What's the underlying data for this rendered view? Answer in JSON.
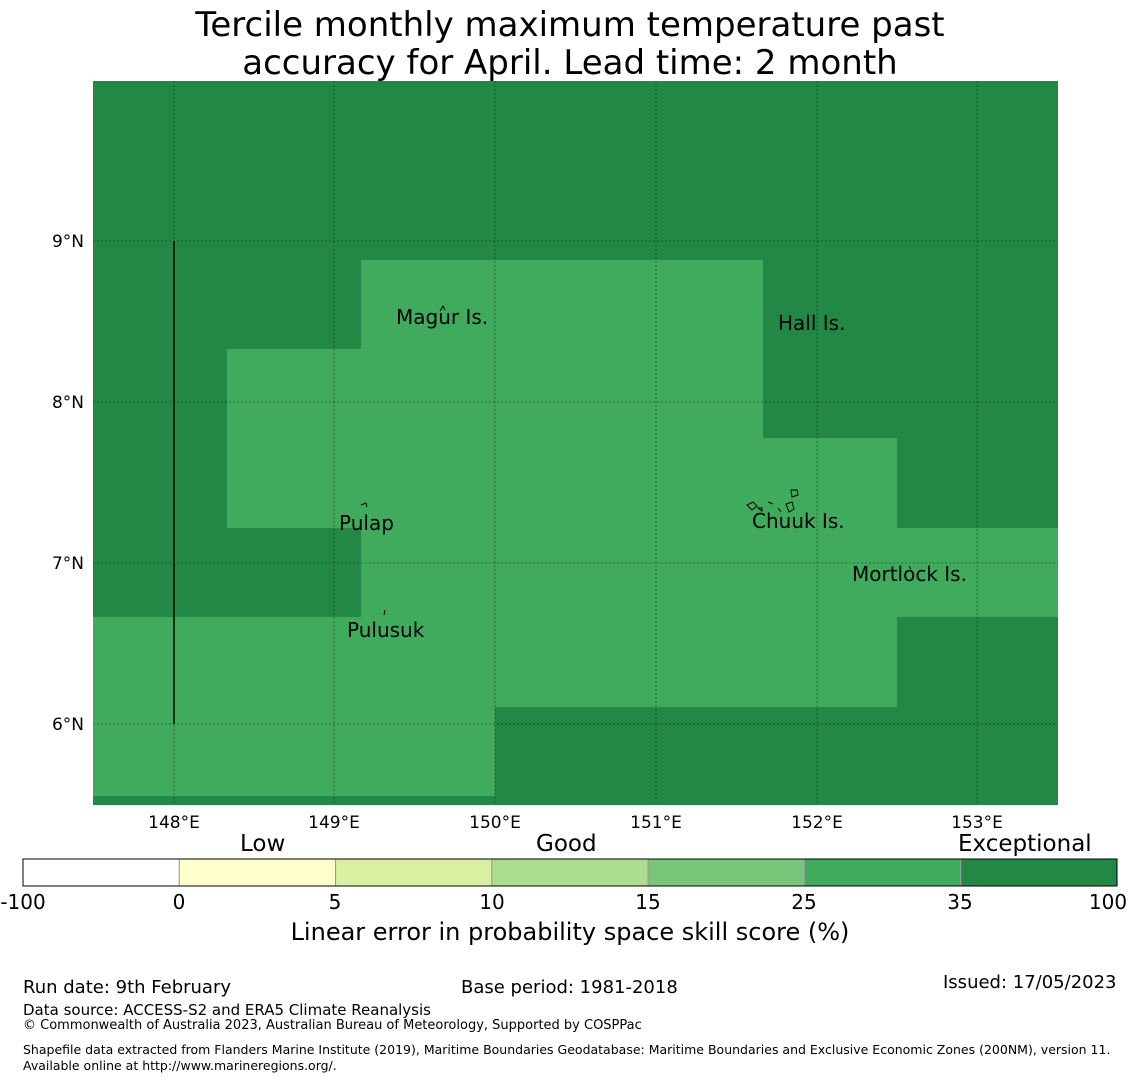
{
  "title": {
    "line1": "Tercile monthly maximum temperature past",
    "line2": "accuracy for April. Lead time: 2 month"
  },
  "map": {
    "lon_ticks": [
      "148°E",
      "149°E",
      "150°E",
      "151°E",
      "152°E",
      "153°E"
    ],
    "lat_ticks": [
      "9°N",
      "8°N",
      "7°N",
      "6°N"
    ],
    "places": [
      {
        "name": "Magur Is."
      },
      {
        "name": "Hall Is."
      },
      {
        "name": "Pulap"
      },
      {
        "name": "Chuuk Is."
      },
      {
        "name": "Mortlock Is."
      },
      {
        "name": "Pulusuk"
      }
    ],
    "colors": {
      "exceptional": "#238845",
      "good_high": "#41ab5d"
    }
  },
  "colorbar": {
    "category_labels": {
      "low": "Low",
      "good": "Good",
      "exceptional": "Exceptional"
    },
    "ticks": [
      "-100",
      "0",
      "5",
      "10",
      "15",
      "25",
      "35",
      "100"
    ],
    "colors": [
      "#ffffff",
      "#ffffcc",
      "#d9f0a3",
      "#addd8e",
      "#78c679",
      "#41ab5d",
      "#238845"
    ],
    "title": "Linear error in probability space skill score (%)"
  },
  "footer": {
    "run_date": "Run date: 9th February",
    "base_period": "Base period: 1981-2018",
    "issued": "Issued: 17/05/2023",
    "data_source": "Data source: ACCESS-S2 and ERA5 Climate Reanalysis",
    "copyright": "© Commonwealth of Australia 2023, Australian Bureau of Meteorology, Supported by COSPPac",
    "shapefile": "Shapefile data extracted from Flanders Marine Institute (2019), Maritime Boundaries Geodatabase: Maritime Boundaries and Exclusive Economic Zones (200NM), version 11. Available online at http://www.marineregions.org/."
  }
}
